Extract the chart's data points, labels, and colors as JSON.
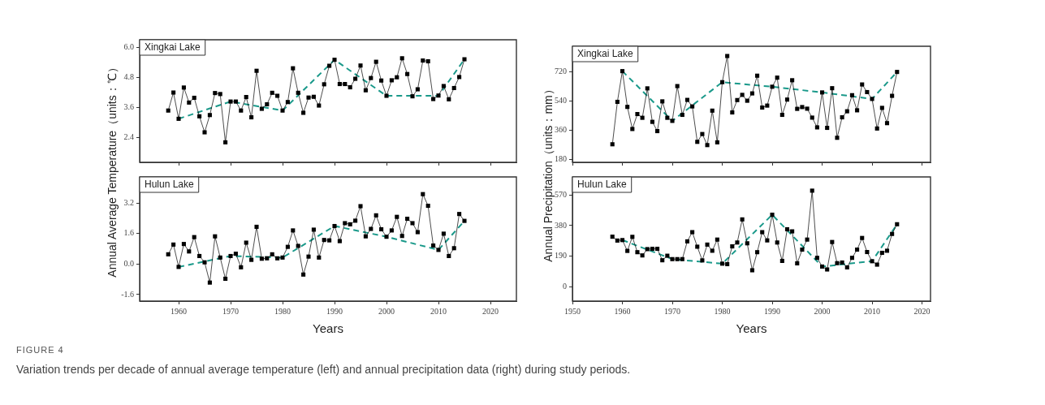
{
  "chart_data": [
    {
      "type": "line",
      "title": "Xingkai Lake",
      "ylabel": "Annual Average Temperature（units：℃）",
      "marker": "square",
      "line_style": "solid",
      "tick_labels": "y",
      "xlim": [
        1952.5,
        2025
      ],
      "xticks": [
        1960,
        1970,
        1980,
        1990,
        2000,
        2010,
        2020
      ],
      "ylim": [
        1.4,
        6.3
      ],
      "yticks": [
        2.4,
        3.6,
        4.8,
        {
          "value": 6,
          "label": "6.0"
        }
      ],
      "annotations": [
        "FIGURE 4",
        "Variation trends per decade of annual average temperature (left) and annual precipitation data (right) during study periods."
      ],
      "series": [
        {
          "color": "#000000",
          "x": [
            1958,
            1959,
            1960,
            1961,
            1962,
            1963,
            1964,
            1965,
            1966,
            1967,
            1968,
            1969,
            1970,
            1971,
            1972,
            1973,
            1974,
            1975,
            1976,
            1977,
            1978,
            1979,
            1980,
            1981,
            1982,
            1983,
            1984,
            1985,
            1986,
            1987,
            1988,
            1989,
            1990,
            1991,
            1992,
            1993,
            1994,
            1995,
            1996,
            1997,
            1998,
            1999,
            2000,
            2001,
            2002,
            2003,
            2004,
            2005,
            2006,
            2007,
            2008,
            2009,
            2010,
            2011,
            2012,
            2013,
            2014,
            2015
          ],
          "values": [
            3.47,
            4.19,
            3.14,
            4.39,
            3.79,
            3.98,
            3.24,
            2.6,
            3.29,
            4.17,
            4.13,
            2.2,
            3.83,
            3.83,
            3.47,
            4.01,
            3.2,
            5.06,
            3.54,
            3.72,
            4.18,
            4.06,
            3.47,
            3.81,
            5.16,
            4.18,
            3.38,
            3.99,
            4.02,
            3.67,
            4.52,
            5.26,
            5.5,
            4.53,
            4.53,
            4.4,
            4.74,
            5.27,
            4.28,
            4.77,
            5.42,
            4.67,
            4.06,
            4.68,
            4.8,
            5.56,
            4.93,
            4.04,
            4.32,
            5.47,
            5.44,
            3.93,
            4.07,
            4.45,
            3.92,
            4.37,
            4.81,
            5.52
          ]
        },
        {
          "type": "line",
          "color": "#1a998a",
          "marker": "none",
          "line_style": "dashed",
          "x": [
            1960,
            1970,
            1980,
            1990,
            2000,
            2010,
            2015
          ],
          "values": [
            3.14,
            3.83,
            3.47,
            5.5,
            4.06,
            4.06,
            5.52
          ]
        }
      ]
    },
    {
      "type": "line",
      "title": "Hulun Lake",
      "xlabel": "Years",
      "marker": "square",
      "line_style": "solid",
      "xlim": [
        1952.5,
        2025
      ],
      "xticks": [
        1960,
        1970,
        1980,
        1990,
        2000,
        2010,
        2020
      ],
      "ylim": [
        -1.94,
        4.56
      ],
      "yticks": [
        -1.6,
        {
          "value": 0,
          "label": "0.0"
        },
        1.6,
        3.2
      ],
      "series": [
        {
          "color": "#000000",
          "x": [
            1958,
            1959,
            1960,
            1961,
            1962,
            1963,
            1964,
            1965,
            1966,
            1967,
            1968,
            1969,
            1970,
            1971,
            1972,
            1973,
            1974,
            1975,
            1976,
            1977,
            1978,
            1979,
            1980,
            1981,
            1982,
            1983,
            1984,
            1985,
            1986,
            1987,
            1988,
            1989,
            1990,
            1991,
            1992,
            1993,
            1994,
            1995,
            1996,
            1997,
            1998,
            1999,
            2000,
            2001,
            2002,
            2003,
            2004,
            2005,
            2006,
            2007,
            2008,
            2009,
            2010,
            2011,
            2012,
            2013,
            2014,
            2015
          ],
          "values": [
            0.51,
            1.02,
            -0.15,
            1.05,
            0.66,
            1.41,
            0.42,
            0.09,
            -0.97,
            1.45,
            0.34,
            -0.77,
            0.42,
            0.54,
            -0.17,
            1.12,
            0.22,
            1.95,
            0.28,
            0.3,
            0.51,
            0.3,
            0.34,
            0.9,
            1.76,
            0.95,
            -0.55,
            0.39,
            1.8,
            0.34,
            1.26,
            1.24,
            1.99,
            1.2,
            2.14,
            2.08,
            2.27,
            3.03,
            1.45,
            1.84,
            2.55,
            1.82,
            1.43,
            1.76,
            2.47,
            1.47,
            2.37,
            2.14,
            1.67,
            3.66,
            3.05,
            0.97,
            0.74,
            1.59,
            0.42,
            0.83,
            2.62,
            2.26
          ]
        },
        {
          "type": "line",
          "color": "#1a998a",
          "marker": "none",
          "line_style": "dashed",
          "x": [
            1960,
            1970,
            1980,
            1990,
            2000,
            2010,
            2015
          ],
          "values": [
            -0.15,
            0.42,
            0.34,
            1.99,
            1.43,
            0.74,
            2.26
          ]
        }
      ]
    },
    {
      "type": "line",
      "title": "Xingkai Lake",
      "ylabel": "Annual Precipitation（units：mm）",
      "marker": "square",
      "line_style": "solid",
      "tick_labels": "y",
      "xlim": [
        1950,
        2021.7
      ],
      "xticks": [
        1950,
        1960,
        1970,
        1980,
        1990,
        2000,
        2010,
        2020
      ],
      "ylim": [
        164,
        878
      ],
      "yticks": [
        180,
        360,
        540,
        720
      ],
      "series": [
        {
          "color": "#000000",
          "x": [
            1958,
            1959,
            1960,
            1961,
            1962,
            1963,
            1964,
            1965,
            1966,
            1967,
            1968,
            1969,
            1970,
            1971,
            1972,
            1973,
            1974,
            1975,
            1976,
            1977,
            1978,
            1979,
            1980,
            1981,
            1982,
            1983,
            1984,
            1985,
            1986,
            1987,
            1988,
            1989,
            1990,
            1991,
            1992,
            1993,
            1994,
            1995,
            1996,
            1997,
            1998,
            1999,
            2000,
            2001,
            2002,
            2003,
            2004,
            2005,
            2006,
            2007,
            2008,
            2009,
            2010,
            2011,
            2012,
            2013,
            2014,
            2015
          ],
          "values": [
            275,
            536,
            725,
            505,
            369,
            461,
            438,
            619,
            413,
            356,
            539,
            438,
            419,
            633,
            456,
            548,
            508,
            290,
            338,
            270,
            482,
            287,
            657,
            818,
            471,
            547,
            579,
            543,
            588,
            697,
            501,
            513,
            629,
            685,
            456,
            550,
            669,
            493,
            504,
            494,
            439,
            379,
            594,
            376,
            620,
            315,
            441,
            478,
            577,
            484,
            643,
            596,
            554,
            372,
            499,
            405,
            573,
            720
          ]
        },
        {
          "type": "line",
          "color": "#1a998a",
          "marker": "none",
          "line_style": "dashed",
          "x": [
            1960,
            1970,
            1980,
            1990,
            2000,
            2010,
            2015
          ],
          "values": [
            725,
            419,
            657,
            629,
            594,
            554,
            720
          ]
        }
      ]
    },
    {
      "type": "line",
      "title": "Hulun Lake",
      "xlabel": "Years",
      "marker": "square",
      "line_style": "solid",
      "xlim": [
        1950,
        2021.7
      ],
      "xticks": [
        1950,
        1960,
        1970,
        1980,
        1990,
        2000,
        2010,
        2020
      ],
      "ylim": [
        -88,
        681
      ],
      "yticks": [
        0,
        190,
        380,
        570
      ],
      "series": [
        {
          "color": "#000000",
          "x": [
            1958,
            1959,
            1960,
            1961,
            1962,
            1963,
            1964,
            1965,
            1966,
            1967,
            1968,
            1969,
            1970,
            1971,
            1972,
            1973,
            1974,
            1975,
            1976,
            1977,
            1978,
            1979,
            1980,
            1981,
            1982,
            1983,
            1984,
            1985,
            1986,
            1987,
            1988,
            1989,
            1990,
            1991,
            1992,
            1993,
            1994,
            1995,
            1996,
            1997,
            1998,
            1999,
            2000,
            2001,
            2002,
            2003,
            2004,
            2005,
            2006,
            2007,
            2008,
            2009,
            2010,
            2011,
            2012,
            2013,
            2014,
            2015
          ],
          "values": [
            311,
            287,
            290,
            223,
            310,
            215,
            195,
            234,
            236,
            236,
            165,
            193,
            172,
            172,
            172,
            282,
            339,
            249,
            164,
            262,
            224,
            293,
            144,
            141,
            251,
            275,
            418,
            270,
            103,
            215,
            339,
            288,
            447,
            275,
            161,
            357,
            344,
            146,
            231,
            293,
            596,
            180,
            126,
            108,
            278,
            147,
            151,
            121,
            180,
            231,
            303,
            216,
            159,
            138,
            211,
            224,
            328,
            388
          ]
        },
        {
          "type": "line",
          "color": "#1a998a",
          "marker": "none",
          "line_style": "dashed",
          "x": [
            1960,
            1970,
            1980,
            1990,
            2000,
            2010,
            2015
          ],
          "values": [
            290,
            172,
            144,
            447,
            126,
            159,
            388
          ]
        }
      ]
    }
  ]
}
